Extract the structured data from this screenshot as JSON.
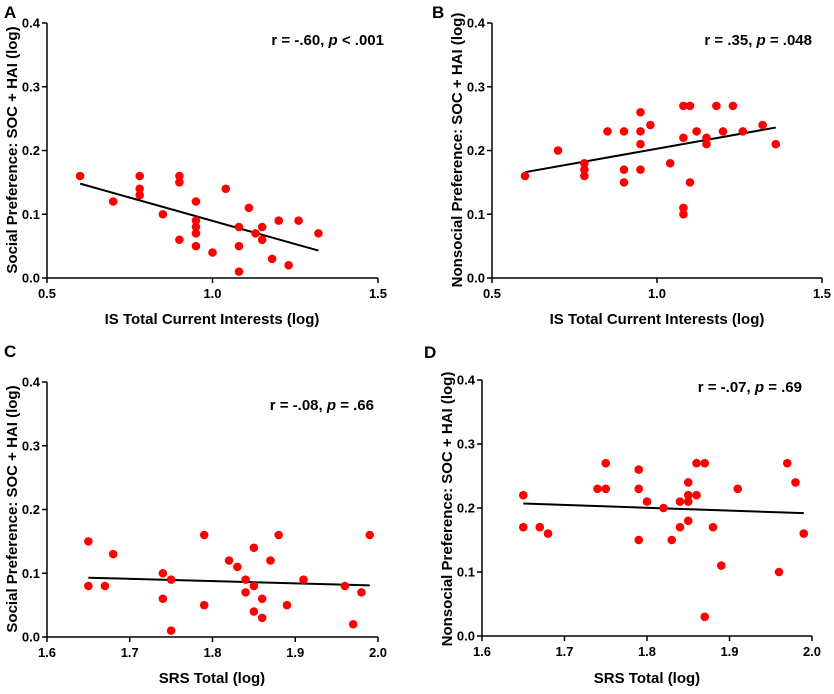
{
  "figure": {
    "marker_color": "#ff0000",
    "line_color": "#000000",
    "axis_color": "#000000"
  },
  "chart_data": [
    {
      "type": "scatter",
      "panel": "A",
      "title": "",
      "stat": {
        "r": "r = -.60, ",
        "p_label": "p",
        "p_value": " < .001"
      },
      "xlabel": "IS Total Current Interests (log)",
      "ylabel": "Social Preference: SOC + HAI (log)",
      "xlim": [
        0.5,
        1.5
      ],
      "ylim": [
        0.0,
        0.4
      ],
      "xticks": [
        "0.5",
        "1.0",
        "1.5"
      ],
      "yticks": [
        "0.0",
        "0.1",
        "0.2",
        "0.3",
        "0.4"
      ],
      "xtick_values": [
        0.5,
        1.0,
        1.5
      ],
      "ytick_values": [
        0.0,
        0.1,
        0.2,
        0.3,
        0.4
      ],
      "points": [
        [
          0.6,
          0.16
        ],
        [
          0.7,
          0.12
        ],
        [
          0.78,
          0.16
        ],
        [
          0.78,
          0.14
        ],
        [
          0.78,
          0.13
        ],
        [
          0.85,
          0.1
        ],
        [
          0.9,
          0.16
        ],
        [
          0.9,
          0.15
        ],
        [
          0.9,
          0.06
        ],
        [
          0.95,
          0.12
        ],
        [
          0.95,
          0.09
        ],
        [
          0.95,
          0.08
        ],
        [
          0.95,
          0.07
        ],
        [
          0.95,
          0.05
        ],
        [
          1.0,
          0.04
        ],
        [
          1.04,
          0.14
        ],
        [
          1.08,
          0.08
        ],
        [
          1.08,
          0.05
        ],
        [
          1.08,
          0.01
        ],
        [
          1.11,
          0.11
        ],
        [
          1.13,
          0.07
        ],
        [
          1.15,
          0.08
        ],
        [
          1.15,
          0.06
        ],
        [
          1.18,
          0.03
        ],
        [
          1.2,
          0.09
        ],
        [
          1.23,
          0.02
        ],
        [
          1.26,
          0.09
        ],
        [
          1.32,
          0.07
        ]
      ],
      "fit_line": [
        [
          0.6,
          0.148
        ],
        [
          1.32,
          0.043
        ]
      ]
    },
    {
      "type": "scatter",
      "panel": "B",
      "title": "",
      "stat": {
        "r": "r = .35, ",
        "p_label": "p",
        "p_value": " = .048"
      },
      "xlabel": "IS Total Current Interests (log)",
      "ylabel": "Nonsocial Preference: SOC + HAI (log)",
      "xlim": [
        0.5,
        1.5
      ],
      "ylim": [
        0.0,
        0.4
      ],
      "xticks": [
        "0.5",
        "1.0",
        "1.5"
      ],
      "yticks": [
        "0.0",
        "0.1",
        "0.2",
        "0.3",
        "0.4"
      ],
      "xtick_values": [
        0.5,
        1.0,
        1.5
      ],
      "ytick_values": [
        0.0,
        0.1,
        0.2,
        0.3,
        0.4
      ],
      "points": [
        [
          0.6,
          0.16
        ],
        [
          0.7,
          0.2
        ],
        [
          0.78,
          0.18
        ],
        [
          0.78,
          0.17
        ],
        [
          0.78,
          0.16
        ],
        [
          0.85,
          0.23
        ],
        [
          0.9,
          0.23
        ],
        [
          0.9,
          0.17
        ],
        [
          0.9,
          0.15
        ],
        [
          0.95,
          0.26
        ],
        [
          0.95,
          0.23
        ],
        [
          0.95,
          0.21
        ],
        [
          0.95,
          0.17
        ],
        [
          0.98,
          0.24
        ],
        [
          1.04,
          0.18
        ],
        [
          1.08,
          0.27
        ],
        [
          1.08,
          0.22
        ],
        [
          1.08,
          0.11
        ],
        [
          1.08,
          0.1
        ],
        [
          1.1,
          0.27
        ],
        [
          1.1,
          0.15
        ],
        [
          1.12,
          0.23
        ],
        [
          1.15,
          0.22
        ],
        [
          1.15,
          0.21
        ],
        [
          1.18,
          0.27
        ],
        [
          1.2,
          0.23
        ],
        [
          1.23,
          0.27
        ],
        [
          1.26,
          0.23
        ],
        [
          1.32,
          0.24
        ],
        [
          1.36,
          0.21
        ]
      ],
      "fit_line": [
        [
          0.6,
          0.166
        ],
        [
          1.36,
          0.236
        ]
      ]
    },
    {
      "type": "scatter",
      "panel": "C",
      "title": "",
      "stat": {
        "r": "r = -.08, ",
        "p_label": "p",
        "p_value": " = .66"
      },
      "xlabel": "SRS Total (log)",
      "ylabel": "Social Preference: SOC + HAI (log)",
      "xlim": [
        1.6,
        2.0
      ],
      "ylim": [
        0.0,
        0.4
      ],
      "xticks": [
        "1.6",
        "1.7",
        "1.8",
        "1.9",
        "2.0"
      ],
      "yticks": [
        "0.0",
        "0.1",
        "0.2",
        "0.3",
        "0.4"
      ],
      "xtick_values": [
        1.6,
        1.7,
        1.8,
        1.9,
        2.0
      ],
      "ytick_values": [
        0.0,
        0.1,
        0.2,
        0.3,
        0.4
      ],
      "points": [
        [
          1.65,
          0.15
        ],
        [
          1.65,
          0.08
        ],
        [
          1.67,
          0.08
        ],
        [
          1.68,
          0.13
        ],
        [
          1.74,
          0.1
        ],
        [
          1.74,
          0.06
        ],
        [
          1.75,
          0.09
        ],
        [
          1.75,
          0.01
        ],
        [
          1.79,
          0.16
        ],
        [
          1.79,
          0.05
        ],
        [
          1.82,
          0.12
        ],
        [
          1.83,
          0.11
        ],
        [
          1.84,
          0.09
        ],
        [
          1.84,
          0.07
        ],
        [
          1.85,
          0.14
        ],
        [
          1.85,
          0.08
        ],
        [
          1.85,
          0.04
        ],
        [
          1.86,
          0.06
        ],
        [
          1.86,
          0.03
        ],
        [
          1.87,
          0.12
        ],
        [
          1.88,
          0.16
        ],
        [
          1.89,
          0.05
        ],
        [
          1.91,
          0.09
        ],
        [
          1.96,
          0.08
        ],
        [
          1.97,
          0.02
        ],
        [
          1.98,
          0.07
        ],
        [
          1.99,
          0.16
        ]
      ],
      "fit_line": [
        [
          1.65,
          0.093
        ],
        [
          1.99,
          0.081
        ]
      ]
    },
    {
      "type": "scatter",
      "panel": "D",
      "title": "",
      "stat": {
        "r": "r = -.07, ",
        "p_label": "p",
        "p_value": " = .69"
      },
      "xlabel": "SRS Total (log)",
      "ylabel": "Nonsocial Preference: SOC + HAI (log)",
      "xlim": [
        1.6,
        2.0
      ],
      "ylim": [
        0.0,
        0.4
      ],
      "xticks": [
        "1.6",
        "1.7",
        "1.8",
        "1.9",
        "2.0"
      ],
      "yticks": [
        "0.0",
        "0.1",
        "0.2",
        "0.3",
        "0.4"
      ],
      "xtick_values": [
        1.6,
        1.7,
        1.8,
        1.9,
        2.0
      ],
      "ytick_values": [
        0.0,
        0.1,
        0.2,
        0.3,
        0.4
      ],
      "points": [
        [
          1.65,
          0.22
        ],
        [
          1.65,
          0.17
        ],
        [
          1.67,
          0.17
        ],
        [
          1.68,
          0.16
        ],
        [
          1.74,
          0.23
        ],
        [
          1.75,
          0.27
        ],
        [
          1.75,
          0.23
        ],
        [
          1.79,
          0.26
        ],
        [
          1.79,
          0.23
        ],
        [
          1.79,
          0.15
        ],
        [
          1.8,
          0.21
        ],
        [
          1.82,
          0.2
        ],
        [
          1.83,
          0.15
        ],
        [
          1.84,
          0.21
        ],
        [
          1.84,
          0.17
        ],
        [
          1.85,
          0.24
        ],
        [
          1.85,
          0.22
        ],
        [
          1.85,
          0.21
        ],
        [
          1.85,
          0.18
        ],
        [
          1.86,
          0.27
        ],
        [
          1.86,
          0.22
        ],
        [
          1.87,
          0.27
        ],
        [
          1.87,
          0.03
        ],
        [
          1.88,
          0.17
        ],
        [
          1.89,
          0.11
        ],
        [
          1.91,
          0.23
        ],
        [
          1.96,
          0.1
        ],
        [
          1.97,
          0.27
        ],
        [
          1.98,
          0.24
        ],
        [
          1.99,
          0.16
        ]
      ],
      "fit_line": [
        [
          1.65,
          0.207
        ],
        [
          1.99,
          0.192
        ]
      ]
    }
  ]
}
